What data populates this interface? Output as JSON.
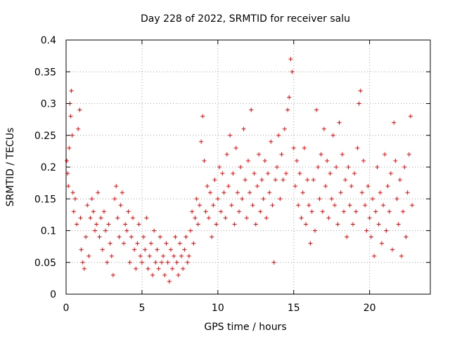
{
  "chart_data": {
    "type": "scatter",
    "title": "Day 228 of 2022, SRMTID for receiver salu",
    "xlabel": "GPS time / hours",
    "ylabel": "SRMTID / TECUs",
    "xlim": [
      0,
      24
    ],
    "ylim": [
      0,
      0.4
    ],
    "x_ticks": [
      0,
      5,
      10,
      15,
      20
    ],
    "x_tick_labels": [
      "0",
      "5",
      "10",
      "15",
      "20"
    ],
    "y_ticks": [
      0,
      0.05,
      0.1,
      0.15,
      0.2,
      0.25,
      0.3,
      0.35,
      0.4
    ],
    "y_tick_labels": [
      "0",
      "0.05",
      "0.1",
      "0.15",
      "0.2",
      "0.25",
      "0.3",
      "0.35",
      "0.4"
    ],
    "grid": true,
    "marker": "+",
    "color": "#ff0000",
    "series": [
      {
        "name": "SRMTID",
        "points": [
          [
            0.05,
            0.21
          ],
          [
            0.1,
            0.19
          ],
          [
            0.15,
            0.17
          ],
          [
            0.2,
            0.23
          ],
          [
            0.25,
            0.3
          ],
          [
            0.3,
            0.28
          ],
          [
            0.35,
            0.32
          ],
          [
            0.4,
            0.25
          ],
          [
            0.45,
            0.16
          ],
          [
            0.5,
            0.13
          ],
          [
            0.6,
            0.15
          ],
          [
            0.7,
            0.11
          ],
          [
            0.8,
            0.26
          ],
          [
            0.9,
            0.29
          ],
          [
            0.95,
            0.12
          ],
          [
            1.0,
            0.07
          ],
          [
            1.1,
            0.05
          ],
          [
            1.2,
            0.04
          ],
          [
            1.3,
            0.09
          ],
          [
            1.4,
            0.14
          ],
          [
            1.5,
            0.06
          ],
          [
            1.6,
            0.12
          ],
          [
            1.7,
            0.15
          ],
          [
            1.8,
            0.13
          ],
          [
            1.9,
            0.1
          ],
          [
            2.0,
            0.11
          ],
          [
            2.1,
            0.16
          ],
          [
            2.2,
            0.09
          ],
          [
            2.3,
            0.12
          ],
          [
            2.4,
            0.07
          ],
          [
            2.5,
            0.13
          ],
          [
            2.6,
            0.1
          ],
          [
            2.7,
            0.05
          ],
          [
            2.8,
            0.11
          ],
          [
            2.9,
            0.08
          ],
          [
            3.0,
            0.06
          ],
          [
            3.1,
            0.03
          ],
          [
            3.2,
            0.15
          ],
          [
            3.3,
            0.17
          ],
          [
            3.4,
            0.12
          ],
          [
            3.5,
            0.09
          ],
          [
            3.6,
            0.14
          ],
          [
            3.7,
            0.16
          ],
          [
            3.8,
            0.08
          ],
          [
            3.9,
            0.11
          ],
          [
            4.0,
            0.1
          ],
          [
            4.1,
            0.13
          ],
          [
            4.2,
            0.05
          ],
          [
            4.3,
            0.09
          ],
          [
            4.4,
            0.12
          ],
          [
            4.5,
            0.07
          ],
          [
            4.6,
            0.04
          ],
          [
            4.7,
            0.08
          ],
          [
            4.8,
            0.11
          ],
          [
            4.9,
            0.06
          ],
          [
            5.0,
            0.05
          ],
          [
            5.1,
            0.09
          ],
          [
            5.2,
            0.07
          ],
          [
            5.3,
            0.12
          ],
          [
            5.4,
            0.04
          ],
          [
            5.5,
            0.06
          ],
          [
            5.6,
            0.08
          ],
          [
            5.7,
            0.03
          ],
          [
            5.8,
            0.1
          ],
          [
            5.9,
            0.05
          ],
          [
            6.0,
            0.07
          ],
          [
            6.1,
            0.04
          ],
          [
            6.2,
            0.09
          ],
          [
            6.3,
            0.05
          ],
          [
            6.4,
            0.06
          ],
          [
            6.5,
            0.03
          ],
          [
            6.6,
            0.08
          ],
          [
            6.7,
            0.05
          ],
          [
            6.8,
            0.02
          ],
          [
            6.9,
            0.07
          ],
          [
            7.0,
            0.04
          ],
          [
            7.1,
            0.06
          ],
          [
            7.2,
            0.09
          ],
          [
            7.3,
            0.05
          ],
          [
            7.4,
            0.03
          ],
          [
            7.5,
            0.08
          ],
          [
            7.6,
            0.06
          ],
          [
            7.7,
            0.04
          ],
          [
            7.8,
            0.07
          ],
          [
            7.9,
            0.09
          ],
          [
            8.0,
            0.05
          ],
          [
            8.1,
            0.06
          ],
          [
            8.2,
            0.1
          ],
          [
            8.3,
            0.13
          ],
          [
            8.4,
            0.08
          ],
          [
            8.5,
            0.12
          ],
          [
            8.6,
            0.15
          ],
          [
            8.7,
            0.11
          ],
          [
            8.8,
            0.14
          ],
          [
            8.9,
            0.24
          ],
          [
            9.0,
            0.28
          ],
          [
            9.1,
            0.21
          ],
          [
            9.2,
            0.13
          ],
          [
            9.3,
            0.17
          ],
          [
            9.4,
            0.12
          ],
          [
            9.5,
            0.16
          ],
          [
            9.6,
            0.09
          ],
          [
            9.7,
            0.14
          ],
          [
            9.8,
            0.18
          ],
          [
            9.9,
            0.11
          ],
          [
            10.0,
            0.15
          ],
          [
            10.1,
            0.2
          ],
          [
            10.2,
            0.13
          ],
          [
            10.3,
            0.19
          ],
          [
            10.4,
            0.16
          ],
          [
            10.5,
            0.12
          ],
          [
            10.6,
            0.22
          ],
          [
            10.7,
            0.17
          ],
          [
            10.8,
            0.25
          ],
          [
            10.9,
            0.14
          ],
          [
            11.0,
            0.19
          ],
          [
            11.1,
            0.11
          ],
          [
            11.2,
            0.23
          ],
          [
            11.3,
            0.16
          ],
          [
            11.4,
            0.13
          ],
          [
            11.5,
            0.2
          ],
          [
            11.6,
            0.15
          ],
          [
            11.7,
            0.26
          ],
          [
            11.8,
            0.18
          ],
          [
            11.9,
            0.12
          ],
          [
            12.0,
            0.21
          ],
          [
            12.1,
            0.16
          ],
          [
            12.2,
            0.29
          ],
          [
            12.3,
            0.14
          ],
          [
            12.4,
            0.19
          ],
          [
            12.5,
            0.11
          ],
          [
            12.6,
            0.17
          ],
          [
            12.7,
            0.22
          ],
          [
            12.8,
            0.13
          ],
          [
            12.9,
            0.18
          ],
          [
            13.0,
            0.15
          ],
          [
            13.1,
            0.21
          ],
          [
            13.2,
            0.12
          ],
          [
            13.3,
            0.19
          ],
          [
            13.4,
            0.16
          ],
          [
            13.5,
            0.24
          ],
          [
            13.6,
            0.14
          ],
          [
            13.7,
            0.05
          ],
          [
            13.8,
            0.18
          ],
          [
            13.9,
            0.2
          ],
          [
            14.0,
            0.25
          ],
          [
            14.1,
            0.15
          ],
          [
            14.2,
            0.22
          ],
          [
            14.3,
            0.18
          ],
          [
            14.4,
            0.26
          ],
          [
            14.5,
            0.19
          ],
          [
            14.6,
            0.29
          ],
          [
            14.7,
            0.31
          ],
          [
            14.8,
            0.37
          ],
          [
            14.9,
            0.35
          ],
          [
            15.0,
            0.23
          ],
          [
            15.1,
            0.17
          ],
          [
            15.2,
            0.21
          ],
          [
            15.3,
            0.14
          ],
          [
            15.4,
            0.19
          ],
          [
            15.5,
            0.12
          ],
          [
            15.6,
            0.16
          ],
          [
            15.7,
            0.23
          ],
          [
            15.8,
            0.11
          ],
          [
            15.9,
            0.18
          ],
          [
            16.0,
            0.14
          ],
          [
            16.1,
            0.08
          ],
          [
            16.2,
            0.13
          ],
          [
            16.3,
            0.18
          ],
          [
            16.4,
            0.1
          ],
          [
            16.5,
            0.29
          ],
          [
            16.6,
            0.2
          ],
          [
            16.7,
            0.15
          ],
          [
            16.8,
            0.22
          ],
          [
            16.9,
            0.13
          ],
          [
            17.0,
            0.26
          ],
          [
            17.1,
            0.17
          ],
          [
            17.2,
            0.21
          ],
          [
            17.3,
            0.12
          ],
          [
            17.4,
            0.19
          ],
          [
            17.5,
            0.15
          ],
          [
            17.6,
            0.25
          ],
          [
            17.7,
            0.14
          ],
          [
            17.8,
            0.2
          ],
          [
            17.9,
            0.11
          ],
          [
            18.0,
            0.27
          ],
          [
            18.1,
            0.16
          ],
          [
            18.2,
            0.22
          ],
          [
            18.3,
            0.13
          ],
          [
            18.4,
            0.18
          ],
          [
            18.5,
            0.09
          ],
          [
            18.6,
            0.2
          ],
          [
            18.7,
            0.14
          ],
          [
            18.8,
            0.17
          ],
          [
            18.9,
            0.11
          ],
          [
            19.0,
            0.19
          ],
          [
            19.1,
            0.13
          ],
          [
            19.2,
            0.23
          ],
          [
            19.3,
            0.3
          ],
          [
            19.4,
            0.32
          ],
          [
            19.5,
            0.16
          ],
          [
            19.6,
            0.21
          ],
          [
            19.7,
            0.14
          ],
          [
            19.8,
            0.1
          ],
          [
            19.9,
            0.17
          ],
          [
            20.0,
            0.12
          ],
          [
            20.1,
            0.09
          ],
          [
            20.2,
            0.15
          ],
          [
            20.3,
            0.06
          ],
          [
            20.4,
            0.13
          ],
          [
            20.5,
            0.2
          ],
          [
            20.6,
            0.11
          ],
          [
            20.7,
            0.16
          ],
          [
            20.8,
            0.08
          ],
          [
            20.9,
            0.14
          ],
          [
            21.0,
            0.22
          ],
          [
            21.1,
            0.1
          ],
          [
            21.2,
            0.17
          ],
          [
            21.3,
            0.13
          ],
          [
            21.4,
            0.19
          ],
          [
            21.5,
            0.07
          ],
          [
            21.6,
            0.27
          ],
          [
            21.7,
            0.21
          ],
          [
            21.8,
            0.15
          ],
          [
            21.9,
            0.11
          ],
          [
            22.0,
            0.18
          ],
          [
            22.1,
            0.06
          ],
          [
            22.2,
            0.13
          ],
          [
            22.3,
            0.2
          ],
          [
            22.4,
            0.09
          ],
          [
            22.5,
            0.16
          ],
          [
            22.6,
            0.22
          ],
          [
            22.7,
            0.28
          ],
          [
            22.8,
            0.14
          ]
        ]
      }
    ]
  }
}
